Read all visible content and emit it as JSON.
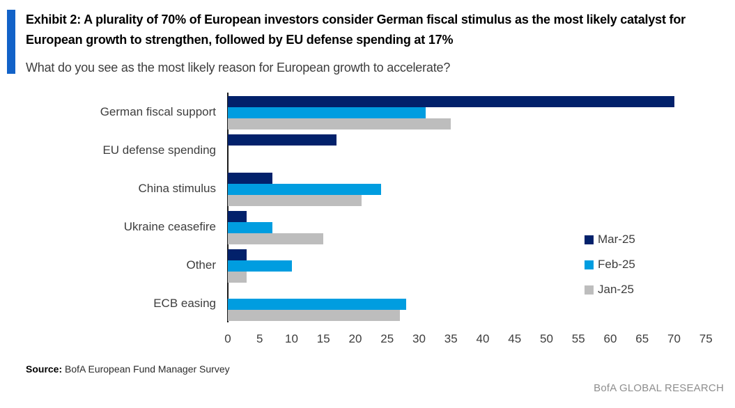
{
  "header": {
    "title": "Exhibit 2: A plurality of 70% of European investors consider German fiscal stimulus as the most likely catalyst for European growth to strengthen, followed by EU defense spending at 17%",
    "subtitle": "What do you see as the most likely reason for European growth to accelerate?",
    "accent_color": "#1262C8"
  },
  "chart_data": {
    "type": "bar",
    "orientation": "horizontal",
    "title": "",
    "xlabel": "",
    "ylabel": "",
    "categories": [
      "German fiscal support",
      "EU defense spending",
      "China stimulus",
      "Ukraine ceasefire",
      "Other",
      "ECB easing"
    ],
    "series": [
      {
        "name": "Mar-25",
        "color": "#02216B",
        "values": [
          70,
          17,
          7,
          3,
          3,
          0
        ]
      },
      {
        "name": "Feb-25",
        "color": "#009DE0",
        "values": [
          31,
          0,
          24,
          7,
          10,
          28
        ]
      },
      {
        "name": "Jan-25",
        "color": "#BDBDBD",
        "values": [
          35,
          0,
          21,
          15,
          3,
          27
        ]
      }
    ],
    "xlim": [
      0,
      75
    ],
    "xticks": [
      0,
      5,
      10,
      15,
      20,
      25,
      30,
      35,
      40,
      45,
      50,
      55,
      60,
      65,
      70,
      75
    ],
    "grid": false,
    "legend_position": "right-middle"
  },
  "footer": {
    "source_label": "Source:",
    "source_text": " BofA European Fund Manager Survey",
    "branding": "BofA GLOBAL RESEARCH"
  }
}
